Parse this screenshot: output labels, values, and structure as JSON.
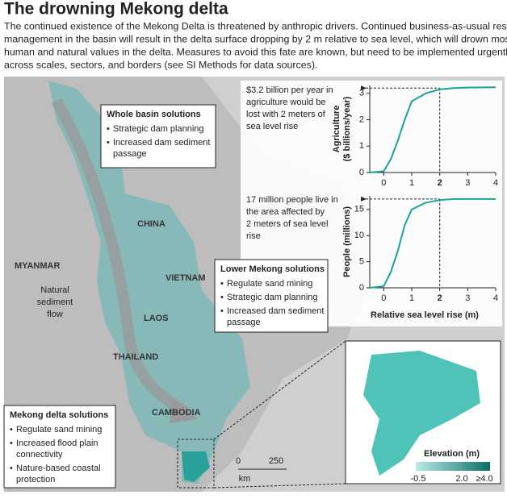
{
  "header": {
    "title": "The drowning Mekong delta",
    "body": [
      "The continued existence of the Mekong Delta is threatened by anthropic drivers. Continued business-as-usual resource",
      "management in the basin will result in the delta surface dropping by 2 m relative to sea level, which will drown most",
      "human and natural values in the delta. Measures to avoid this fate are known, but need to be implemented urgently",
      "across scales, sectors, and borders (see SI Methods for data sources)."
    ]
  },
  "map": {
    "labels": [
      "CHINA",
      "MYANMAR",
      "VIETNAM",
      "LAOS",
      "THAILAND",
      "CAMBODIA"
    ],
    "flow_label": [
      "Natural",
      "sediment",
      "flow"
    ],
    "scale": [
      "0",
      "250",
      "km"
    ],
    "inset": {
      "title": "Elevation (m)",
      "ticks": [
        "-0.5",
        "2.0",
        "≥4.0"
      ]
    },
    "boxes": [
      {
        "title": "Whole basin solutions",
        "items": [
          [
            "Strategic dam planning"
          ],
          [
            "Increased dam sediment",
            "passage"
          ]
        ]
      },
      {
        "title": "Lower Mekong solutions",
        "items": [
          [
            "Regulate sand mining"
          ],
          [
            "Strategic dam planning"
          ],
          [
            "Increased dam sediment",
            "passage"
          ]
        ]
      },
      {
        "title": "Mekong delta solutions",
        "items": [
          [
            "Regulate sand mining"
          ],
          [
            "Increased flood plain",
            "connectivity"
          ],
          [
            "Nature-based coastal",
            "protection"
          ]
        ]
      }
    ]
  },
  "chart_data": [
    {
      "type": "line",
      "color": "#1aa39a",
      "y_label": [
        "Agriculture",
        "($ billions/year)"
      ],
      "annotation": [
        "$3.2 billion per year in",
        "agriculture would be",
        "lost with 2 meters of",
        "sea level rise"
      ],
      "x": [
        -0.5,
        0,
        0.25,
        0.5,
        0.75,
        1,
        1.5,
        2,
        2.5,
        3,
        4
      ],
      "values": [
        0,
        0.05,
        0.5,
        1.2,
        2.0,
        2.7,
        3.0,
        3.15,
        3.2,
        3.22,
        3.23
      ],
      "reference": {
        "x": 2,
        "y": 3.2
      },
      "xlim": [
        -0.5,
        4
      ],
      "ylim": [
        0,
        3.3
      ],
      "xticks": [
        0,
        1,
        2,
        3,
        4
      ],
      "yticks": [
        0,
        1,
        2,
        3
      ],
      "bold_xtick": 2
    },
    {
      "type": "line",
      "color": "#1aa39a",
      "y_label": [
        "People (millions)"
      ],
      "x_label": "Relative sea level rise (m)",
      "annotation": [
        "17 million people live in",
        "the area affected by",
        "2 meters of sea level",
        "rise"
      ],
      "x": [
        -0.5,
        0,
        0.25,
        0.5,
        0.75,
        1,
        1.5,
        2,
        2.5,
        3,
        4
      ],
      "values": [
        0,
        0.3,
        3,
        7,
        12,
        15,
        16.3,
        16.8,
        17,
        17,
        17
      ],
      "reference": {
        "x": 2,
        "y": 17
      },
      "xlim": [
        -0.5,
        4
      ],
      "ylim": [
        0,
        17.6
      ],
      "xticks": [
        0,
        1,
        2,
        3,
        4
      ],
      "yticks": [
        0,
        5,
        10,
        15
      ],
      "bold_xtick": 2
    }
  ]
}
